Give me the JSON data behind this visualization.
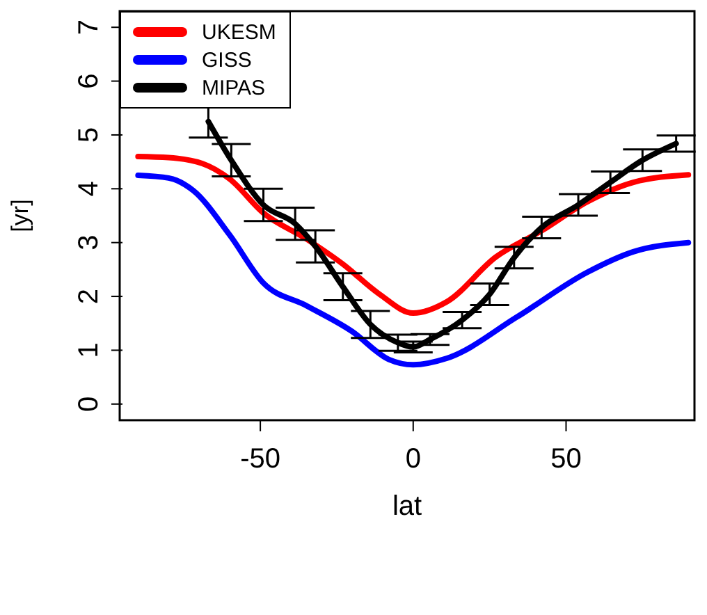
{
  "chart_data": {
    "type": "line",
    "xlabel": "lat",
    "ylabel": "[yr]",
    "xlim": [
      -96,
      92
    ],
    "ylim": [
      -0.3,
      7.3
    ],
    "xticks": [
      -50,
      0,
      50
    ],
    "yticks": [
      0,
      1,
      2,
      3,
      4,
      5,
      6,
      7
    ],
    "grid": false,
    "legend": "top left",
    "marker": "none",
    "line_style": "solid",
    "series": [
      {
        "name": "UKESM",
        "color": "#ff0000",
        "x": [
          -90,
          -80,
          -69,
          -60,
          -49,
          -35,
          -23,
          -11,
          0,
          11,
          27,
          42,
          57,
          72,
          90
        ],
        "values": [
          4.6,
          4.58,
          4.47,
          4.18,
          3.55,
          3.07,
          2.6,
          2.04,
          1.69,
          1.9,
          2.73,
          3.22,
          3.76,
          4.12,
          4.26
        ]
      },
      {
        "name": "GISS",
        "color": "#0000ff",
        "x": [
          -90,
          -80,
          -72,
          -60,
          -49,
          -35,
          -20,
          -8,
          0,
          11,
          34,
          57,
          72,
          90
        ],
        "values": [
          4.25,
          4.2,
          3.97,
          3.14,
          2.25,
          1.83,
          1.35,
          0.83,
          0.73,
          0.85,
          1.62,
          2.45,
          2.83,
          3.0
        ]
      },
      {
        "name": "MIPAS",
        "color": "#000000",
        "x": [
          -67,
          -59.5,
          -49,
          -38.6,
          -32,
          -23,
          -14,
          -5,
          0,
          5.5,
          16,
          25,
          33,
          42,
          54,
          64.5,
          75,
          86
        ],
        "values": [
          5.25,
          4.53,
          3.7,
          3.35,
          2.93,
          2.18,
          1.48,
          1.14,
          1.06,
          1.2,
          1.56,
          2.04,
          2.72,
          3.28,
          3.7,
          4.12,
          4.53,
          4.84
        ],
        "errors": [
          0.3,
          0.3,
          0.3,
          0.3,
          0.3,
          0.25,
          0.25,
          0.15,
          0.1,
          0.1,
          0.15,
          0.2,
          0.2,
          0.2,
          0.2,
          0.2,
          0.2,
          0.15
        ]
      }
    ]
  }
}
